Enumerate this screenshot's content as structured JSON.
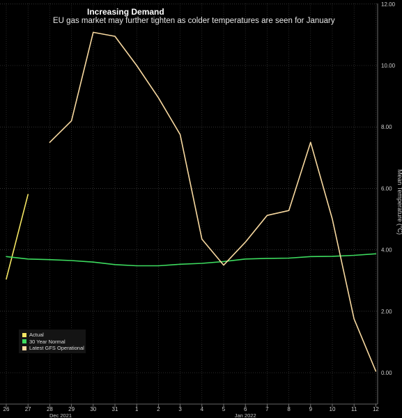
{
  "chart_data": {
    "type": "line",
    "title": "Increasing Demand",
    "subtitle": "EU gas market may further tighten as colder temperatures are seen for January",
    "ylabel": "Mean Temperature (°C)",
    "ylim": [
      0,
      12
    ],
    "yticks": [
      "0.00",
      "2.00",
      "4.00",
      "6.00",
      "8.00",
      "10.00",
      "12.00"
    ],
    "categories": [
      "26",
      "27",
      "28",
      "29",
      "30",
      "31",
      "1",
      "2",
      "3",
      "4",
      "5",
      "6",
      "7",
      "8",
      "9",
      "10",
      "11",
      "12"
    ],
    "month_labels": [
      {
        "label": "Dec 2021",
        "at_index": 2.5
      },
      {
        "label": "Jan 2022",
        "at_index": 11
      }
    ],
    "grid": true,
    "legend_position": "bottom-left",
    "series": [
      {
        "name": "Actual",
        "color": "#f5e663",
        "values": [
          3.05,
          5.8,
          null,
          null,
          null,
          null,
          null,
          null,
          null,
          null,
          null,
          null,
          null,
          null,
          null,
          null,
          null,
          null
        ]
      },
      {
        "name": "30 Year Normal",
        "color": "#3ddc5f",
        "values": [
          3.78,
          3.7,
          3.68,
          3.65,
          3.6,
          3.52,
          3.48,
          3.48,
          3.53,
          3.56,
          3.62,
          3.7,
          3.72,
          3.73,
          3.78,
          3.79,
          3.82,
          3.87
        ]
      },
      {
        "name": "Latest GFS Operational",
        "color": "#f8d9a0",
        "values": [
          null,
          null,
          7.5,
          8.2,
          11.08,
          10.95,
          10.0,
          8.95,
          7.75,
          4.35,
          3.5,
          4.25,
          5.12,
          5.28,
          7.5,
          5.0,
          1.75,
          0.05
        ]
      }
    ]
  }
}
